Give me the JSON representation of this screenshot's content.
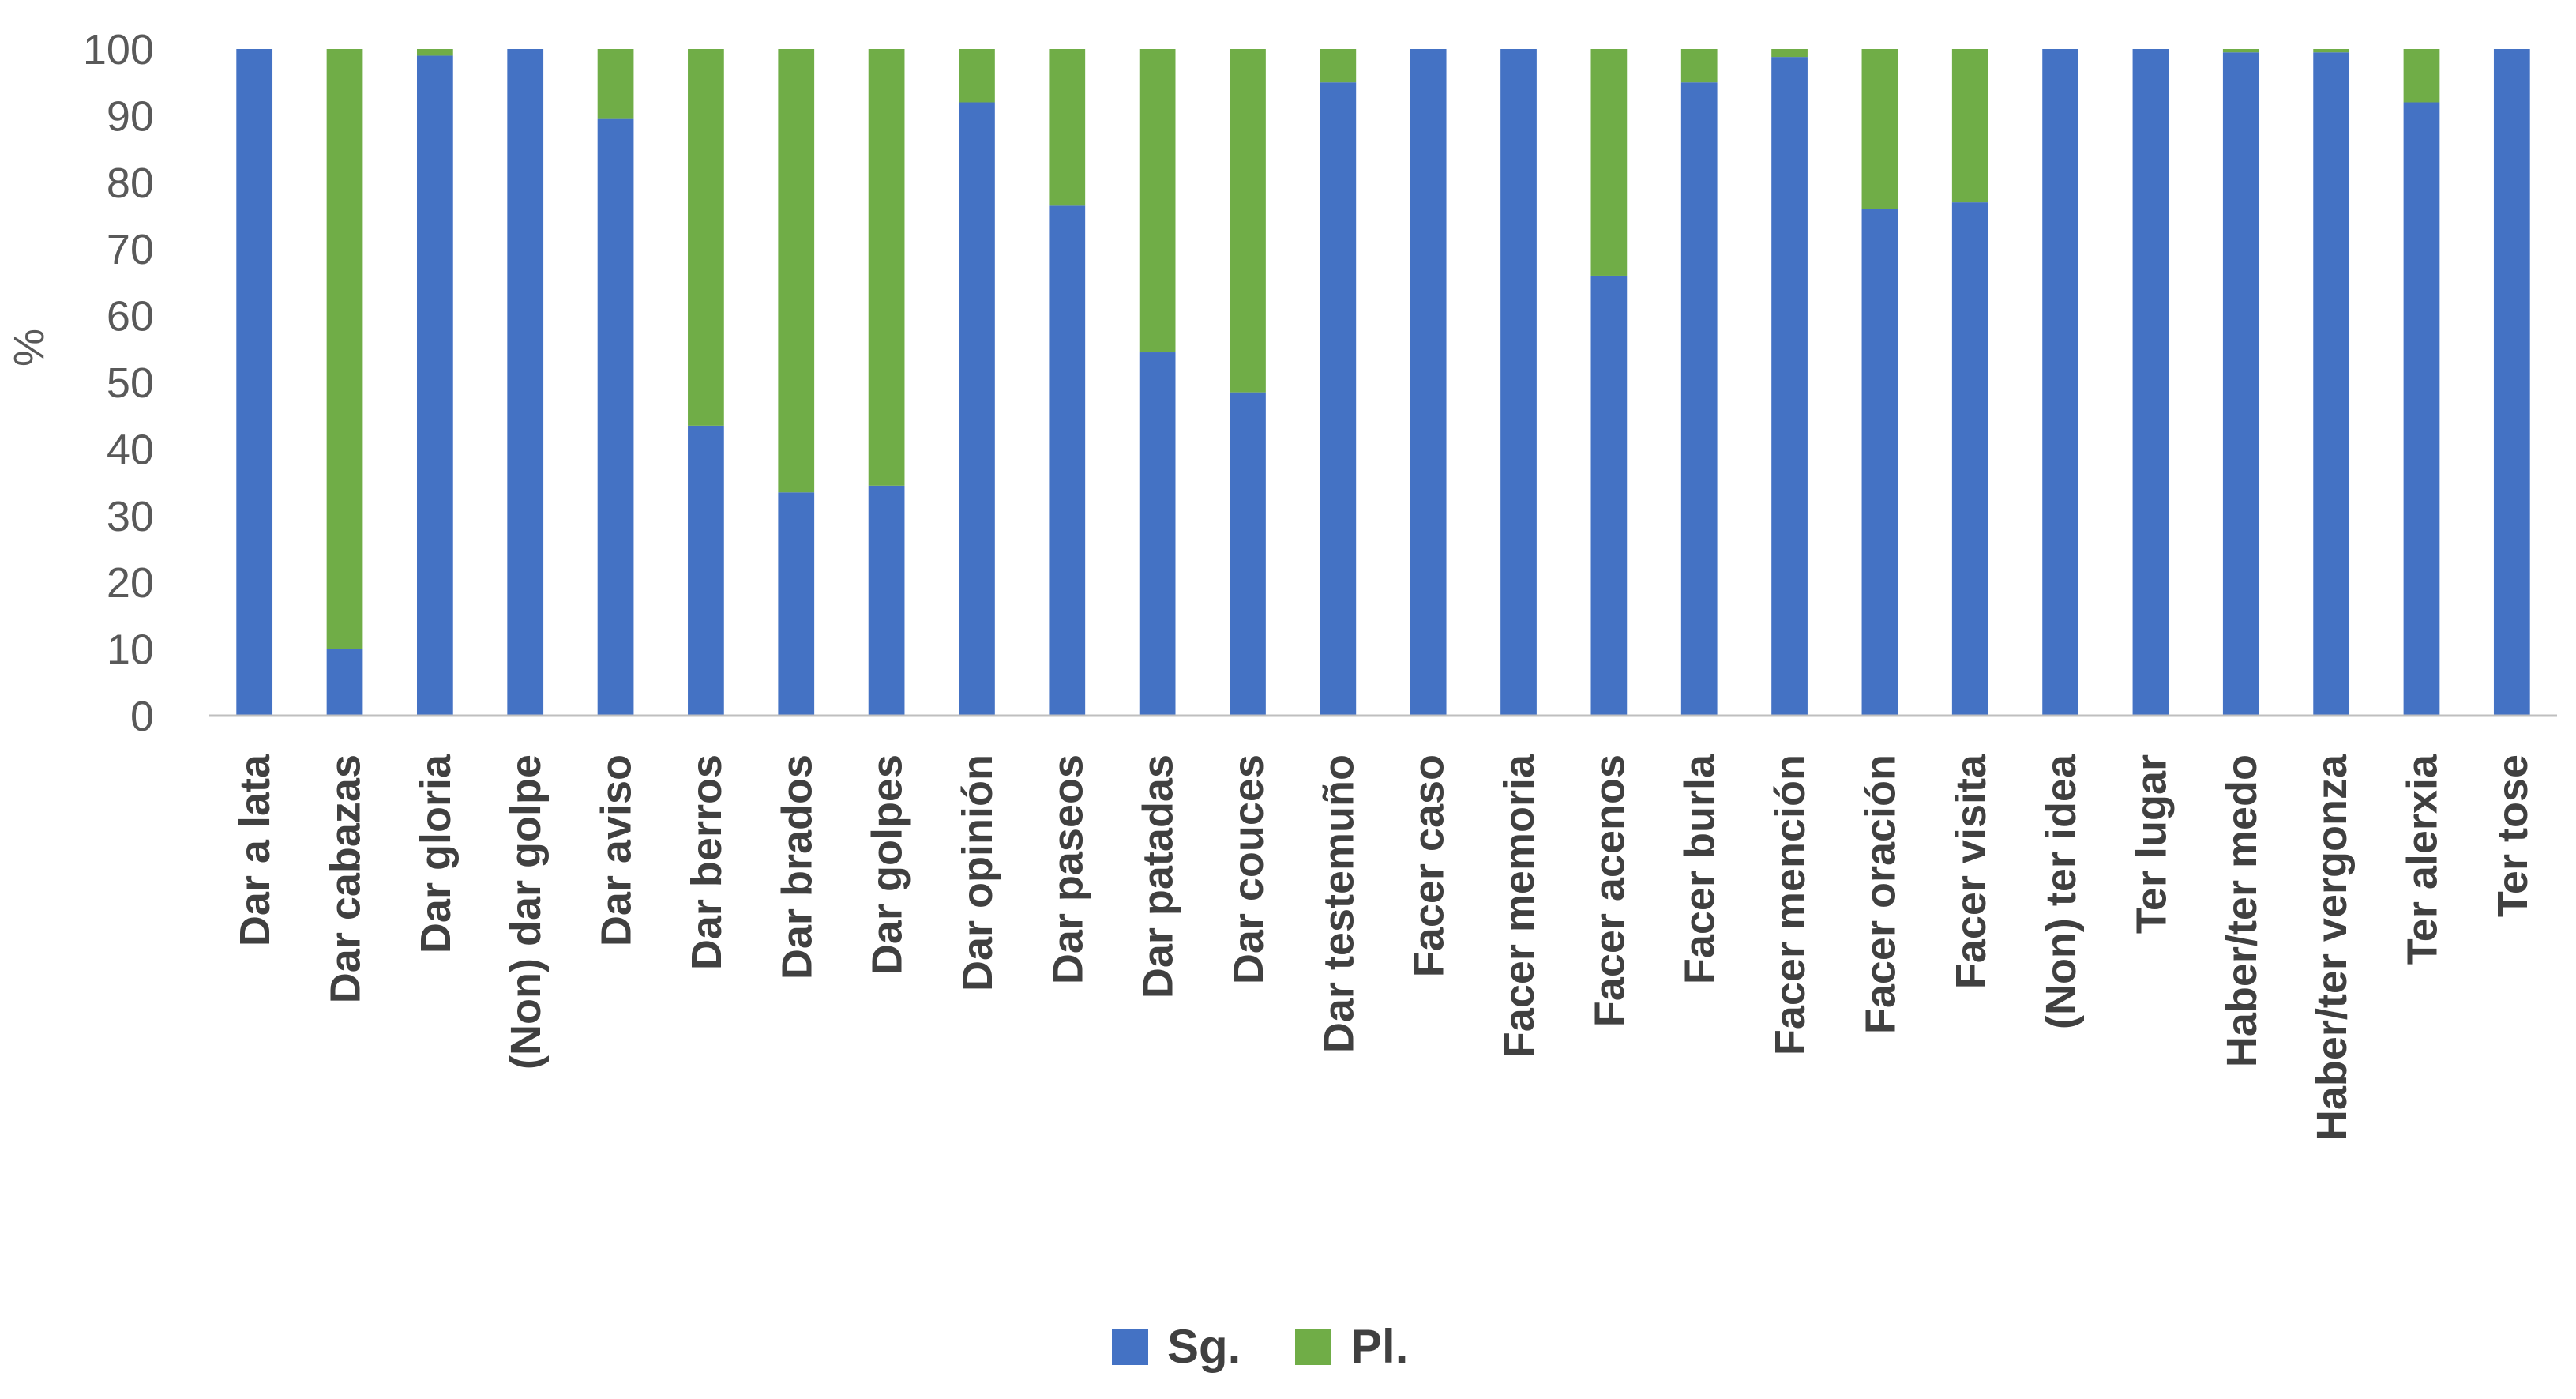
{
  "chart_data": {
    "type": "bar",
    "stacked": true,
    "title": "",
    "xlabel": "",
    "ylabel": "%",
    "ylim": [
      0,
      100
    ],
    "yticks": [
      0,
      10,
      20,
      30,
      40,
      50,
      60,
      70,
      80,
      90,
      100
    ],
    "grid": false,
    "legend_position": "bottom",
    "categories": [
      "Dar a lata",
      "Dar cabazas",
      "Dar gloria",
      "(Non) dar golpe",
      "Dar aviso",
      "Dar berros",
      "Dar brados",
      "Dar golpes",
      "Dar opinión",
      "Dar paseos",
      "Dar patadas",
      "Dar couces",
      "Dar testemuño",
      "Facer caso",
      "Facer memoria",
      "Facer acenos",
      "Facer burla",
      "Facer mención",
      "Facer oración",
      "Facer visita",
      "(Non) ter idea",
      "Ter lugar",
      "Haber/ter medo",
      "Haber/ter vergonza",
      "Ter alerxia",
      "Ter tose"
    ],
    "series": [
      {
        "name": "Sg.",
        "color": "#4472C4",
        "values": [
          100,
          10,
          99,
          100,
          89.5,
          43.5,
          33.5,
          34.5,
          92,
          76.5,
          54.5,
          48.5,
          95,
          100,
          100,
          66,
          95,
          98.8,
          76,
          77,
          100,
          100,
          99.5,
          99.5,
          92,
          100
        ]
      },
      {
        "name": "Pl.",
        "color": "#70AD47",
        "values": [
          0,
          90,
          1,
          0,
          10.5,
          56.5,
          66.5,
          65.5,
          8,
          23.5,
          45.5,
          51.5,
          5,
          0,
          0,
          34,
          5,
          1.2,
          24,
          23,
          0,
          0,
          0.5,
          0.5,
          8,
          0
        ]
      }
    ]
  }
}
